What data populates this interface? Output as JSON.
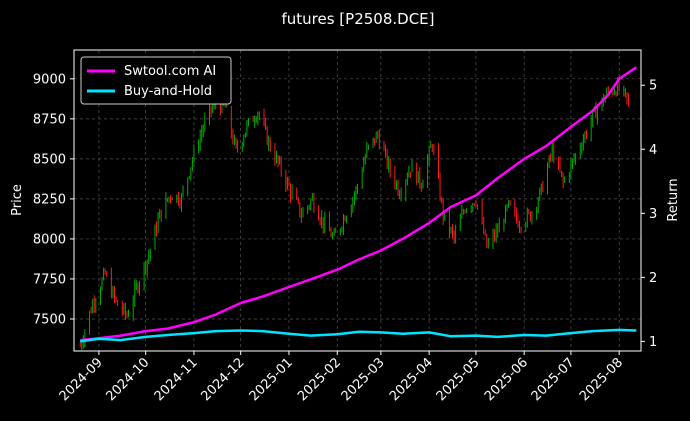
{
  "chart_data": {
    "type": "line",
    "title": "futures [P2508.DCE]",
    "ylabel": "Price",
    "y2label": "Return",
    "ylim": [
      7300,
      9180
    ],
    "y2lim": [
      0.85,
      5.55
    ],
    "yticks": [
      "7500",
      "7750",
      "8000",
      "8250",
      "8500",
      "8750",
      "9000"
    ],
    "y2ticks": [
      "1",
      "2",
      "3",
      "4",
      "5"
    ],
    "xticks": [
      "2024-09",
      "2024-10",
      "2024-11",
      "2024-12",
      "2025-01",
      "2025-02",
      "2025-03",
      "2025-04",
      "2025-05",
      "2025-06",
      "2025-07",
      "2025-08"
    ],
    "grid": true,
    "legend_position": "top-left",
    "colors": {
      "background": "#000000",
      "up_candle": "#00b000",
      "down_candle": "#ff1a1a",
      "swtool": "#ff00ff",
      "buy_hold": "#00e5ff",
      "grid": "#555555"
    },
    "price_series_name": "",
    "price_close_points": [
      [
        "2024-08-20",
        7330
      ],
      [
        "2024-08-28",
        7600
      ],
      [
        "2024-09-05",
        7780
      ],
      [
        "2024-09-12",
        7600
      ],
      [
        "2024-09-19",
        7520
      ],
      [
        "2024-09-26",
        7720
      ],
      [
        "2024-10-03",
        7900
      ],
      [
        "2024-10-10",
        8150
      ],
      [
        "2024-10-17",
        8280
      ],
      [
        "2024-10-24",
        8250
      ],
      [
        "2024-10-31",
        8500
      ],
      [
        "2024-11-07",
        8700
      ],
      [
        "2024-11-14",
        8850
      ],
      [
        "2024-11-21",
        8820
      ],
      [
        "2024-11-28",
        8550
      ],
      [
        "2024-12-05",
        8700
      ],
      [
        "2024-12-12",
        8800
      ],
      [
        "2024-12-19",
        8600
      ],
      [
        "2024-12-26",
        8450
      ],
      [
        "2025-01-02",
        8300
      ],
      [
        "2025-01-09",
        8150
      ],
      [
        "2025-01-16",
        8250
      ],
      [
        "2025-01-23",
        8100
      ],
      [
        "2025-01-30",
        8000
      ],
      [
        "2025-02-06",
        8150
      ],
      [
        "2025-02-13",
        8300
      ],
      [
        "2025-02-20",
        8550
      ],
      [
        "2025-02-27",
        8650
      ],
      [
        "2025-03-06",
        8450
      ],
      [
        "2025-03-13",
        8300
      ],
      [
        "2025-03-20",
        8450
      ],
      [
        "2025-03-27",
        8350
      ],
      [
        "2025-04-03",
        8600
      ],
      [
        "2025-04-10",
        8150
      ],
      [
        "2025-04-17",
        8000
      ],
      [
        "2025-04-24",
        8200
      ],
      [
        "2025-05-01",
        8250
      ],
      [
        "2025-05-08",
        7950
      ],
      [
        "2025-05-15",
        8050
      ],
      [
        "2025-05-22",
        8200
      ],
      [
        "2025-05-29",
        8100
      ],
      [
        "2025-06-05",
        8150
      ],
      [
        "2025-06-12",
        8300
      ],
      [
        "2025-06-19",
        8550
      ],
      [
        "2025-06-26",
        8350
      ],
      [
        "2025-07-03",
        8500
      ],
      [
        "2025-07-10",
        8650
      ],
      [
        "2025-07-17",
        8800
      ],
      [
        "2025-07-24",
        8900
      ],
      [
        "2025-07-31",
        8950
      ],
      [
        "2025-08-07",
        8850
      ]
    ],
    "series": [
      {
        "name": "Swtool.com AI",
        "axis": "right",
        "points": [
          [
            "2024-08-20",
            1.02
          ],
          [
            "2024-09-01",
            1.05
          ],
          [
            "2024-09-15",
            1.09
          ],
          [
            "2024-10-01",
            1.16
          ],
          [
            "2024-10-15",
            1.2
          ],
          [
            "2024-11-01",
            1.3
          ],
          [
            "2024-11-15",
            1.42
          ],
          [
            "2024-12-01",
            1.6
          ],
          [
            "2024-12-15",
            1.7
          ],
          [
            "2025-01-01",
            1.85
          ],
          [
            "2025-01-15",
            1.97
          ],
          [
            "2025-02-01",
            2.12
          ],
          [
            "2025-02-15",
            2.28
          ],
          [
            "2025-03-01",
            2.42
          ],
          [
            "2025-03-15",
            2.6
          ],
          [
            "2025-04-01",
            2.85
          ],
          [
            "2025-04-15",
            3.1
          ],
          [
            "2025-05-01",
            3.28
          ],
          [
            "2025-05-15",
            3.55
          ],
          [
            "2025-06-01",
            3.85
          ],
          [
            "2025-06-15",
            4.05
          ],
          [
            "2025-07-01",
            4.35
          ],
          [
            "2025-07-15",
            4.6
          ],
          [
            "2025-07-25",
            4.85
          ],
          [
            "2025-08-01",
            5.1
          ],
          [
            "2025-08-12",
            5.28
          ]
        ]
      },
      {
        "name": "Buy-and-Hold",
        "axis": "right",
        "points": [
          [
            "2024-08-20",
            1.0
          ],
          [
            "2024-09-01",
            1.04
          ],
          [
            "2024-09-15",
            1.02
          ],
          [
            "2024-10-01",
            1.07
          ],
          [
            "2024-10-15",
            1.1
          ],
          [
            "2024-11-01",
            1.13
          ],
          [
            "2024-11-15",
            1.16
          ],
          [
            "2024-12-01",
            1.17
          ],
          [
            "2024-12-15",
            1.16
          ],
          [
            "2025-01-01",
            1.12
          ],
          [
            "2025-01-15",
            1.09
          ],
          [
            "2025-02-01",
            1.11
          ],
          [
            "2025-02-15",
            1.15
          ],
          [
            "2025-03-01",
            1.14
          ],
          [
            "2025-03-15",
            1.12
          ],
          [
            "2025-04-01",
            1.14
          ],
          [
            "2025-04-15",
            1.08
          ],
          [
            "2025-05-01",
            1.09
          ],
          [
            "2025-05-15",
            1.07
          ],
          [
            "2025-06-01",
            1.1
          ],
          [
            "2025-06-15",
            1.09
          ],
          [
            "2025-07-01",
            1.13
          ],
          [
            "2025-07-15",
            1.16
          ],
          [
            "2025-08-01",
            1.18
          ],
          [
            "2025-08-12",
            1.17
          ]
        ]
      }
    ]
  }
}
